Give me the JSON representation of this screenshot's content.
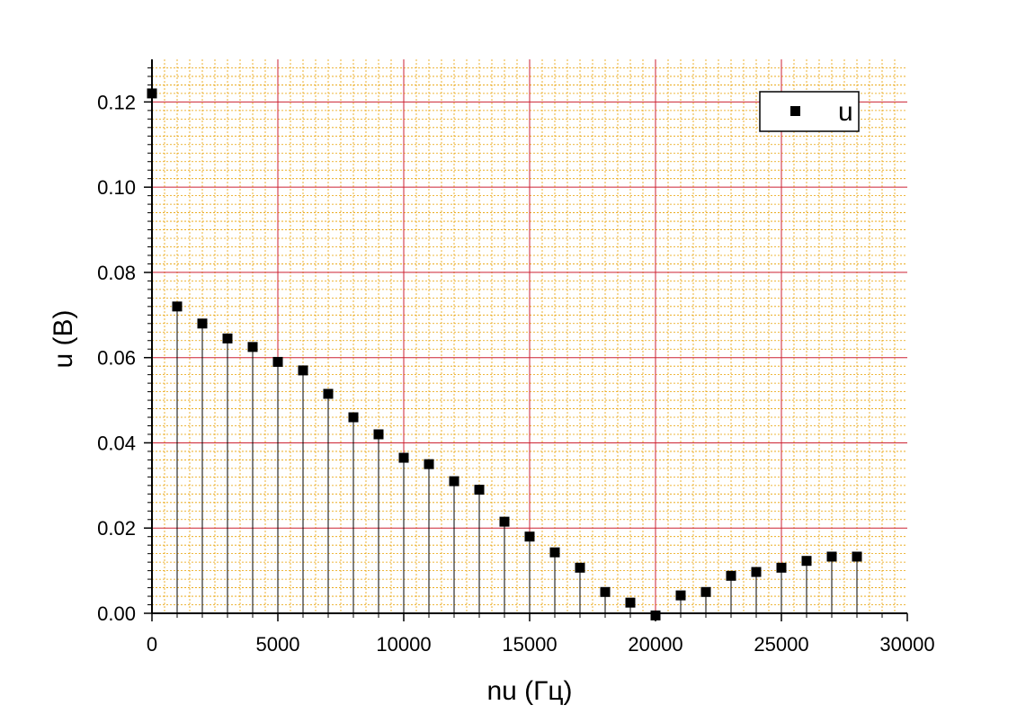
{
  "chart_data": {
    "type": "scatter",
    "style": "stem",
    "xlabel": "nu (Гц)",
    "ylabel": "u (B)",
    "xlim": [
      0,
      30000
    ],
    "ylim": [
      0,
      0.13
    ],
    "x_ticks": [
      0,
      5000,
      10000,
      15000,
      20000,
      25000,
      30000
    ],
    "x_tick_labels": [
      "0",
      "5000",
      "10000",
      "15000",
      "20000",
      "25000",
      "30000"
    ],
    "y_ticks": [
      0,
      0.02,
      0.04,
      0.06,
      0.08,
      0.1,
      0.12
    ],
    "y_tick_labels": [
      "0.00",
      "0.02",
      "0.04",
      "0.06",
      "0.08",
      "0.10",
      "0.12"
    ],
    "grid": true,
    "major_grid_color": "#cc2233",
    "minor_grid_color": "#e8a000",
    "legend": {
      "position": "top-right",
      "entries": [
        "u"
      ]
    },
    "series": [
      {
        "name": "u",
        "marker": "square",
        "color": "#000000",
        "x": [
          0,
          1000,
          2000,
          3000,
          4000,
          5000,
          6000,
          7000,
          8000,
          9000,
          10000,
          11000,
          12000,
          13000,
          14000,
          15000,
          16000,
          17000,
          18000,
          19000,
          20000,
          21000,
          22000,
          23000,
          24000,
          25000,
          26000,
          27000,
          28000
        ],
        "y": [
          0.122,
          0.072,
          0.068,
          0.0645,
          0.0625,
          0.059,
          0.057,
          0.0515,
          0.046,
          0.042,
          0.0365,
          0.035,
          0.031,
          0.029,
          0.0215,
          0.018,
          0.0143,
          0.0107,
          0.005,
          0.0025,
          -0.0005,
          0.0042,
          0.005,
          0.0088,
          0.0097,
          0.0107,
          0.0123,
          0.0133,
          0.0133
        ]
      }
    ]
  }
}
